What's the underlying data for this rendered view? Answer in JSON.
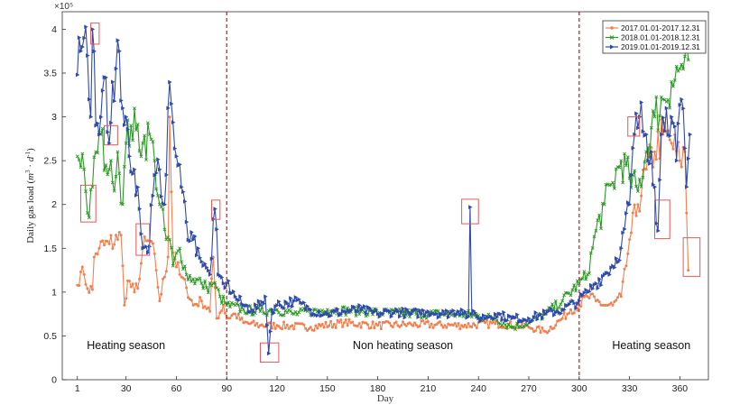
{
  "chart_data": {
    "type": "line",
    "title": "",
    "xlabel": "Day",
    "ylabel": "Daily gas load (m^3 · d^-1)",
    "y_multiplier_label": "×10^5",
    "xlim": [
      -8,
      377
    ],
    "ylim": [
      0,
      420000
    ],
    "xticks": [
      1,
      30,
      60,
      90,
      120,
      150,
      180,
      210,
      240,
      270,
      300,
      330,
      360
    ],
    "yticks": [
      0,
      50000,
      100000,
      150000,
      200000,
      250000,
      300000,
      350000,
      400000
    ],
    "ytick_labels": [
      "0",
      "0.5",
      "1",
      "1.5",
      "2",
      "2.5",
      "3",
      "3.5",
      "4"
    ],
    "grid": false,
    "legend_position": "top-right",
    "series": [
      {
        "name": "2017.01.01-2017.12.31",
        "color": "#f4804f",
        "marker": "circle",
        "anchors": [
          [
            1,
            108000
          ],
          [
            3,
            123000
          ],
          [
            5,
            120000
          ],
          [
            7,
            104000
          ],
          [
            10,
            103000
          ],
          [
            11,
            140000
          ],
          [
            14,
            150000
          ],
          [
            20,
            155000
          ],
          [
            25,
            160000
          ],
          [
            27,
            165000
          ],
          [
            28,
            130000
          ],
          [
            29,
            85000
          ],
          [
            31,
            113000
          ],
          [
            35,
            100000
          ],
          [
            38,
            115000
          ],
          [
            40,
            150000
          ],
          [
            45,
            158000
          ],
          [
            48,
            125000
          ],
          [
            50,
            90000
          ],
          [
            55,
            140000
          ],
          [
            56,
            300000
          ],
          [
            58,
            145000
          ],
          [
            62,
            120000
          ],
          [
            66,
            105000
          ],
          [
            70,
            85000
          ],
          [
            75,
            90000
          ],
          [
            80,
            78000
          ],
          [
            82,
            140000
          ],
          [
            84,
            70000
          ],
          [
            88,
            85000
          ],
          [
            90,
            70000
          ],
          [
            95,
            75000
          ],
          [
            100,
            65000
          ],
          [
            110,
            62000
          ],
          [
            120,
            62000
          ],
          [
            140,
            60000
          ],
          [
            160,
            65000
          ],
          [
            180,
            62000
          ],
          [
            200,
            63000
          ],
          [
            230,
            62000
          ],
          [
            250,
            64000
          ],
          [
            270,
            60000
          ],
          [
            280,
            55000
          ],
          [
            290,
            70000
          ],
          [
            295,
            80000
          ],
          [
            300,
            85000
          ],
          [
            305,
            95000
          ],
          [
            310,
            90000
          ],
          [
            315,
            85000
          ],
          [
            320,
            85000
          ],
          [
            325,
            95000
          ],
          [
            328,
            130000
          ],
          [
            330,
            160000
          ],
          [
            335,
            200000
          ],
          [
            340,
            240000
          ],
          [
            345,
            260000
          ],
          [
            350,
            280000
          ],
          [
            355,
            270000
          ],
          [
            360,
            250000
          ],
          [
            363,
            260000
          ],
          [
            365,
            125000
          ]
        ]
      },
      {
        "name": "2018.01.01-2018.12.31",
        "color": "#2a9a22",
        "marker": "x",
        "anchors": [
          [
            1,
            255000
          ],
          [
            4,
            258000
          ],
          [
            6,
            215000
          ],
          [
            8,
            185000
          ],
          [
            10,
            220000
          ],
          [
            12,
            260000
          ],
          [
            15,
            280000
          ],
          [
            18,
            245000
          ],
          [
            20,
            240000
          ],
          [
            22,
            225000
          ],
          [
            25,
            260000
          ],
          [
            28,
            200000
          ],
          [
            30,
            270000
          ],
          [
            33,
            290000
          ],
          [
            36,
            285000
          ],
          [
            40,
            270000
          ],
          [
            44,
            280000
          ],
          [
            47,
            250000
          ],
          [
            50,
            200000
          ],
          [
            54,
            160000
          ],
          [
            56,
            160000
          ],
          [
            58,
            130000
          ],
          [
            62,
            150000
          ],
          [
            66,
            120000
          ],
          [
            70,
            115000
          ],
          [
            75,
            110000
          ],
          [
            78,
            105000
          ],
          [
            82,
            110000
          ],
          [
            86,
            95000
          ],
          [
            90,
            85000
          ],
          [
            100,
            80000
          ],
          [
            110,
            78000
          ],
          [
            120,
            80000
          ],
          [
            130,
            75000
          ],
          [
            150,
            80000
          ],
          [
            170,
            78000
          ],
          [
            190,
            76000
          ],
          [
            210,
            75000
          ],
          [
            230,
            75000
          ],
          [
            250,
            70000
          ],
          [
            260,
            60000
          ],
          [
            270,
            65000
          ],
          [
            280,
            75000
          ],
          [
            290,
            90000
          ],
          [
            300,
            110000
          ],
          [
            305,
            120000
          ],
          [
            310,
            170000
          ],
          [
            315,
            200000
          ],
          [
            320,
            225000
          ],
          [
            325,
            250000
          ],
          [
            330,
            230000
          ],
          [
            335,
            215000
          ],
          [
            340,
            260000
          ],
          [
            345,
            300000
          ],
          [
            350,
            320000
          ],
          [
            355,
            340000
          ],
          [
            360,
            355000
          ],
          [
            365,
            365000
          ]
        ]
      },
      {
        "name": "2019.01.01-2019.12.31",
        "color": "#2f4aa8",
        "marker": "triangle-right",
        "anchors": [
          [
            1,
            348000
          ],
          [
            3,
            375000
          ],
          [
            5,
            390000
          ],
          [
            7,
            370000
          ],
          [
            8,
            320000
          ],
          [
            9,
            300000
          ],
          [
            10,
            400000
          ],
          [
            12,
            290000
          ],
          [
            14,
            280000
          ],
          [
            16,
            330000
          ],
          [
            18,
            345000
          ],
          [
            20,
            270000
          ],
          [
            22,
            340000
          ],
          [
            24,
            355000
          ],
          [
            26,
            375000
          ],
          [
            28,
            310000
          ],
          [
            30,
            300000
          ],
          [
            32,
            255000
          ],
          [
            35,
            240000
          ],
          [
            38,
            195000
          ],
          [
            40,
            150000
          ],
          [
            43,
            145000
          ],
          [
            46,
            210000
          ],
          [
            50,
            240000
          ],
          [
            53,
            200000
          ],
          [
            55,
            310000
          ],
          [
            57,
            315000
          ],
          [
            60,
            255000
          ],
          [
            63,
            220000
          ],
          [
            66,
            180000
          ],
          [
            70,
            160000
          ],
          [
            73,
            150000
          ],
          [
            76,
            130000
          ],
          [
            80,
            120000
          ],
          [
            83,
            195000
          ],
          [
            85,
            120000
          ],
          [
            88,
            110000
          ],
          [
            90,
            110000
          ],
          [
            95,
            95000
          ],
          [
            100,
            85000
          ],
          [
            105,
            80000
          ],
          [
            110,
            85000
          ],
          [
            113,
            95000
          ],
          [
            115,
            30000
          ],
          [
            117,
            80000
          ],
          [
            120,
            85000
          ],
          [
            130,
            90000
          ],
          [
            140,
            80000
          ],
          [
            150,
            75000
          ],
          [
            160,
            78000
          ],
          [
            170,
            80000
          ],
          [
            180,
            75000
          ],
          [
            190,
            78000
          ],
          [
            200,
            75000
          ],
          [
            210,
            78000
          ],
          [
            220,
            75000
          ],
          [
            230,
            80000
          ],
          [
            234,
            72000
          ],
          [
            235,
            197000
          ],
          [
            236,
            75000
          ],
          [
            240,
            70000
          ],
          [
            250,
            75000
          ],
          [
            260,
            70000
          ],
          [
            270,
            70000
          ],
          [
            280,
            75000
          ],
          [
            290,
            80000
          ],
          [
            300,
            90000
          ],
          [
            305,
            100000
          ],
          [
            310,
            110000
          ],
          [
            315,
            120000
          ],
          [
            320,
            130000
          ],
          [
            325,
            150000
          ],
          [
            330,
            200000
          ],
          [
            333,
            280000
          ],
          [
            336,
            300000
          ],
          [
            340,
            280000
          ],
          [
            343,
            260000
          ],
          [
            345,
            220000
          ],
          [
            347,
            170000
          ],
          [
            349,
            280000
          ],
          [
            352,
            310000
          ],
          [
            355,
            300000
          ],
          [
            358,
            250000
          ],
          [
            361,
            320000
          ],
          [
            364,
            220000
          ],
          [
            366,
            280000
          ]
        ]
      }
    ],
    "vertical_lines": [
      90,
      300
    ],
    "vertical_line_color": "#e02020",
    "annotations": [
      {
        "text": "Heating season",
        "x": 30,
        "y": 35000
      },
      {
        "text": "Non heating season",
        "x": 195,
        "y": 35000
      },
      {
        "text": "Heating season",
        "x": 343,
        "y": 35000
      }
    ],
    "highlight_boxes": [
      {
        "x0": 9,
        "x1": 14,
        "y0": 383000,
        "y1": 407000
      },
      {
        "x0": 3,
        "x1": 12,
        "y0": 180000,
        "y1": 222000
      },
      {
        "x0": 17,
        "x1": 25,
        "y0": 268000,
        "y1": 290000
      },
      {
        "x0": 36,
        "x1": 44,
        "y0": 142000,
        "y1": 178000
      },
      {
        "x0": 81,
        "x1": 86,
        "y0": 183000,
        "y1": 205000
      },
      {
        "x0": 110,
        "x1": 121,
        "y0": 20000,
        "y1": 42000
      },
      {
        "x0": 230,
        "x1": 240,
        "y0": 178000,
        "y1": 206000
      },
      {
        "x0": 329,
        "x1": 336,
        "y0": 278000,
        "y1": 300000
      },
      {
        "x0": 345,
        "x1": 354,
        "y0": 161000,
        "y1": 205000
      },
      {
        "x0": 362,
        "x1": 372,
        "y0": 118000,
        "y1": 162000
      }
    ]
  }
}
